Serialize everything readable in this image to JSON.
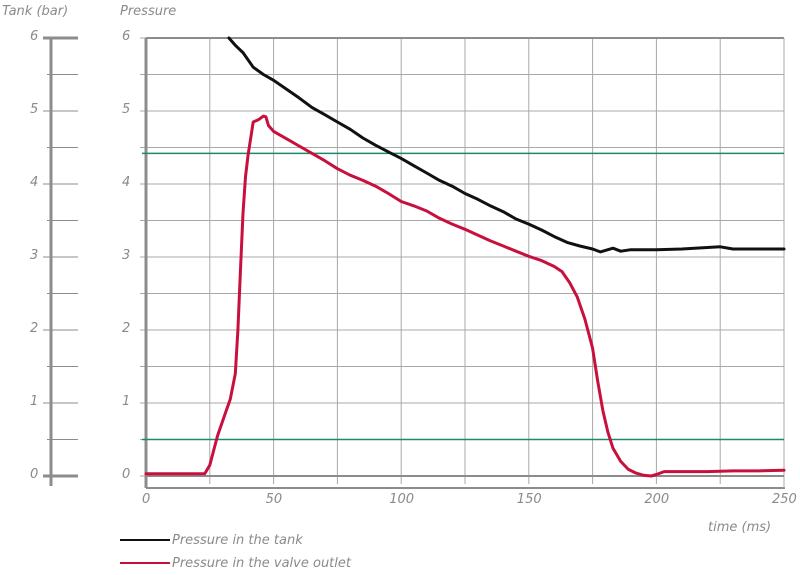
{
  "chart_data": {
    "type": "line",
    "title": "",
    "left_axis_title": "Tank (bar)",
    "ylabel": "Pressure",
    "xlabel": "time (ms)",
    "xlim": [
      0,
      250
    ],
    "ylim": [
      0,
      6
    ],
    "x_ticks": [
      0,
      50,
      100,
      150,
      200,
      250
    ],
    "y_ticks": [
      0,
      1,
      2,
      3,
      4,
      5,
      6
    ],
    "grid": true,
    "grid_x_step": 25,
    "grid_y_step": 0.5,
    "reference_lines": [
      {
        "y": 4.42,
        "color": "#1a8a6a"
      },
      {
        "y": 0.5,
        "color": "#1a8a6a"
      }
    ],
    "series": [
      {
        "name": "Pressure in the tank",
        "color": "#111111",
        "x": [
          32.5,
          35,
          38,
          42,
          46,
          50,
          55,
          60,
          65,
          70,
          75,
          80,
          85,
          90,
          95,
          100,
          105,
          110,
          115,
          120,
          125,
          130,
          135,
          140,
          145,
          150,
          155,
          160,
          165,
          170,
          175,
          178,
          181,
          183,
          186,
          190,
          200,
          210,
          220,
          225,
          230,
          240,
          250
        ],
        "y": [
          6.0,
          5.9,
          5.8,
          5.6,
          5.5,
          5.42,
          5.3,
          5.18,
          5.05,
          4.95,
          4.85,
          4.75,
          4.63,
          4.53,
          4.44,
          4.35,
          4.25,
          4.15,
          4.05,
          3.97,
          3.87,
          3.79,
          3.7,
          3.62,
          3.52,
          3.45,
          3.37,
          3.28,
          3.2,
          3.15,
          3.11,
          3.07,
          3.1,
          3.12,
          3.08,
          3.1,
          3.1,
          3.11,
          3.13,
          3.14,
          3.11,
          3.11,
          3.11
        ]
      },
      {
        "name": "Pressure in the valve outlet",
        "color": "#c8103e",
        "x": [
          0,
          10,
          20,
          23,
          25,
          28,
          31,
          33,
          35,
          36,
          37,
          38,
          39,
          40,
          42,
          44,
          46,
          47,
          48,
          50,
          55,
          60,
          65,
          70,
          75,
          80,
          85,
          90,
          95,
          100,
          105,
          110,
          115,
          120,
          125,
          130,
          135,
          140,
          145,
          150,
          155,
          160,
          163,
          166,
          169,
          172,
          175,
          177,
          179,
          181,
          183,
          186,
          189,
          192,
          195,
          198,
          200,
          203,
          206,
          210,
          220,
          230,
          240,
          250
        ],
        "y": [
          0.03,
          0.03,
          0.03,
          0.03,
          0.15,
          0.55,
          0.85,
          1.05,
          1.4,
          2.0,
          2.8,
          3.6,
          4.1,
          4.4,
          4.85,
          4.88,
          4.93,
          4.92,
          4.8,
          4.72,
          4.62,
          4.52,
          4.42,
          4.32,
          4.21,
          4.12,
          4.05,
          3.97,
          3.87,
          3.76,
          3.7,
          3.63,
          3.53,
          3.45,
          3.38,
          3.3,
          3.22,
          3.15,
          3.08,
          3.01,
          2.95,
          2.87,
          2.8,
          2.65,
          2.45,
          2.15,
          1.75,
          1.3,
          0.9,
          0.6,
          0.38,
          0.2,
          0.09,
          0.04,
          0.01,
          0.0,
          0.02,
          0.06,
          0.06,
          0.06,
          0.06,
          0.07,
          0.07,
          0.08
        ]
      }
    ],
    "legend": {
      "position": "bottom-left",
      "entries": [
        "Pressure in the tank",
        "Pressure in the valve outlet"
      ]
    }
  },
  "labels": {
    "left_axis_title": "Tank (bar)",
    "main_axis_title": "Pressure",
    "x_axis_title": "time (ms)",
    "y_ticks": [
      "0",
      "1",
      "2",
      "3",
      "4",
      "5",
      "6"
    ],
    "x_ticks": [
      "0",
      "50",
      "100",
      "150",
      "200",
      "250"
    ],
    "legend_tank": "Pressure in the tank",
    "legend_valve": "Pressure in the valve outlet"
  }
}
